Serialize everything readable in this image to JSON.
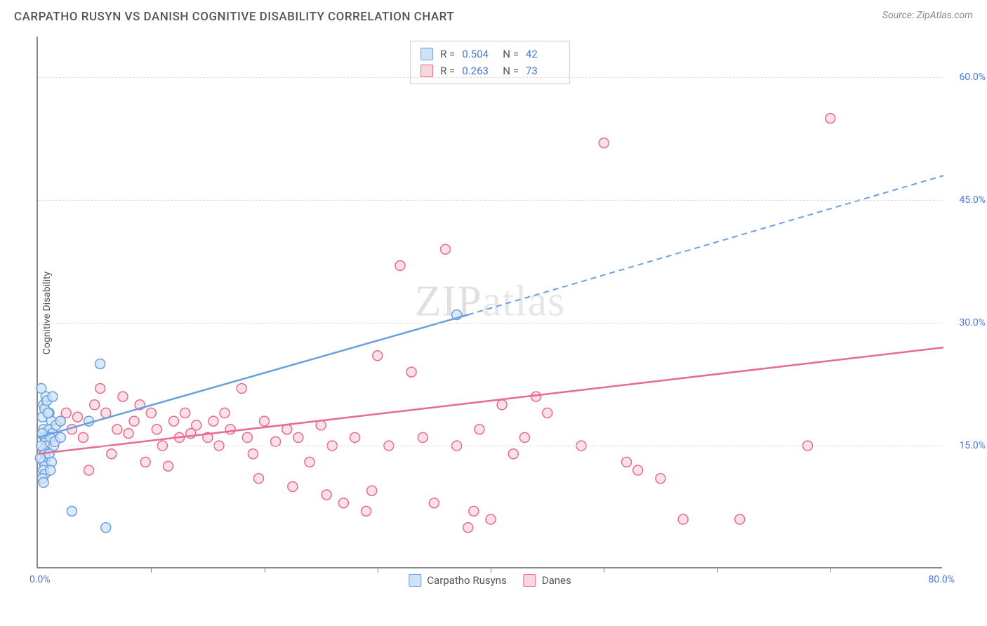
{
  "header": {
    "title": "CARPATHO RUSYN VS DANISH COGNITIVE DISABILITY CORRELATION CHART",
    "source_prefix": "Source: ",
    "source": "ZipAtlas.com"
  },
  "watermark": {
    "zip": "ZIP",
    "atlas": "atlas"
  },
  "chart": {
    "type": "scatter",
    "xlim": [
      0,
      80
    ],
    "ylim": [
      0,
      65
    ],
    "ylabel": "Cognitive Disability",
    "x_axis_labels": {
      "min": "0.0%",
      "max": "80.0%"
    },
    "yticks": [
      {
        "v": 15,
        "label": "15.0%"
      },
      {
        "v": 30,
        "label": "30.0%"
      },
      {
        "v": 45,
        "label": "45.0%"
      },
      {
        "v": 60,
        "label": "60.0%"
      }
    ],
    "xticks": [
      10,
      20,
      30,
      40,
      50,
      60,
      70
    ],
    "grid_color": "#e2e2e2",
    "background_color": "#ffffff",
    "marker_radius": 7,
    "marker_stroke_width": 1.5,
    "trend_line_width": 2.5,
    "series": [
      {
        "id": "carpatho",
        "label": "Carpatho Rusyns",
        "color_fill": "#cfe2f7",
        "color_stroke": "#6aa0e0",
        "r_label": "R =",
        "r_value": "0.504",
        "n_label": "N =",
        "n_value": "42",
        "trend": {
          "x1": 0,
          "y1": 16,
          "x2": 38,
          "y2": 31,
          "dash_from_x": 38,
          "dash_to_x": 80,
          "dash_to_y": 48
        },
        "points": [
          [
            0.3,
            22
          ],
          [
            0.5,
            20
          ],
          [
            0.4,
            18.5
          ],
          [
            0.6,
            19.5
          ],
          [
            0.7,
            21
          ],
          [
            0.5,
            17
          ],
          [
            0.6,
            16
          ],
          [
            0.7,
            15.5
          ],
          [
            0.8,
            15
          ],
          [
            0.5,
            14.5
          ],
          [
            0.6,
            14
          ],
          [
            0.7,
            13.5
          ],
          [
            0.5,
            13
          ],
          [
            0.6,
            12.5
          ],
          [
            0.5,
            12
          ],
          [
            0.6,
            11.5
          ],
          [
            0.4,
            11
          ],
          [
            0.5,
            10.5
          ],
          [
            1.0,
            19
          ],
          [
            1.2,
            18
          ],
          [
            1.0,
            17
          ],
          [
            1.3,
            16.5
          ],
          [
            1.1,
            16
          ],
          [
            1.4,
            15
          ],
          [
            1.0,
            14
          ],
          [
            1.2,
            13
          ],
          [
            1.1,
            12
          ],
          [
            1.5,
            15.5
          ],
          [
            1.6,
            17.5
          ],
          [
            2.0,
            18
          ],
          [
            2.0,
            16
          ],
          [
            3.0,
            7
          ],
          [
            6.0,
            5
          ],
          [
            5.5,
            25
          ],
          [
            37,
            31
          ],
          [
            0.8,
            20.5
          ],
          [
            0.9,
            19
          ],
          [
            1.3,
            21
          ],
          [
            4.5,
            18
          ],
          [
            0.4,
            16.5
          ],
          [
            0.3,
            15
          ],
          [
            0.2,
            13.5
          ]
        ]
      },
      {
        "id": "danes",
        "label": "Danes",
        "color_fill": "#f9d5de",
        "color_stroke": "#e86a91",
        "r_label": "R =",
        "r_value": "0.263",
        "n_label": "N =",
        "n_value": "73",
        "trend": {
          "x1": 0,
          "y1": 14,
          "x2": 80,
          "y2": 27
        },
        "points": [
          [
            2,
            18
          ],
          [
            2.5,
            19
          ],
          [
            3,
            17
          ],
          [
            3.5,
            18.5
          ],
          [
            4,
            16
          ],
          [
            5,
            20
          ],
          [
            5.5,
            22
          ],
          [
            6,
            19
          ],
          [
            7,
            17
          ],
          [
            7.5,
            21
          ],
          [
            8,
            16.5
          ],
          [
            8.5,
            18
          ],
          [
            9,
            20
          ],
          [
            10,
            19
          ],
          [
            10.5,
            17
          ],
          [
            11,
            15
          ],
          [
            12,
            18
          ],
          [
            12.5,
            16
          ],
          [
            13,
            19
          ],
          [
            14,
            17.5
          ],
          [
            15,
            16
          ],
          [
            15.5,
            18
          ],
          [
            16,
            15
          ],
          [
            17,
            17
          ],
          [
            18,
            22
          ],
          [
            18.5,
            16
          ],
          [
            19,
            14
          ],
          [
            20,
            18
          ],
          [
            21,
            15.5
          ],
          [
            22,
            17
          ],
          [
            23,
            16
          ],
          [
            24,
            13
          ],
          [
            25,
            17.5
          ],
          [
            25.5,
            9
          ],
          [
            26,
            15
          ],
          [
            27,
            8
          ],
          [
            28,
            16
          ],
          [
            29,
            7
          ],
          [
            29.5,
            9.5
          ],
          [
            30,
            26
          ],
          [
            31,
            15
          ],
          [
            32,
            37
          ],
          [
            33,
            24
          ],
          [
            34,
            16
          ],
          [
            35,
            8
          ],
          [
            36,
            39
          ],
          [
            37,
            15
          ],
          [
            38,
            5
          ],
          [
            38.5,
            7
          ],
          [
            39,
            17
          ],
          [
            40,
            6
          ],
          [
            41,
            20
          ],
          [
            42,
            14
          ],
          [
            43,
            16
          ],
          [
            44,
            21
          ],
          [
            45,
            19
          ],
          [
            48,
            15
          ],
          [
            50,
            52
          ],
          [
            52,
            13
          ],
          [
            53,
            12
          ],
          [
            55,
            11
          ],
          [
            57,
            6
          ],
          [
            68,
            15
          ],
          [
            70,
            55
          ],
          [
            62,
            6
          ],
          [
            4.5,
            12
          ],
          [
            6.5,
            14
          ],
          [
            9.5,
            13
          ],
          [
            11.5,
            12.5
          ],
          [
            13.5,
            16.5
          ],
          [
            16.5,
            19
          ],
          [
            19.5,
            11
          ],
          [
            22.5,
            10
          ]
        ]
      }
    ]
  }
}
